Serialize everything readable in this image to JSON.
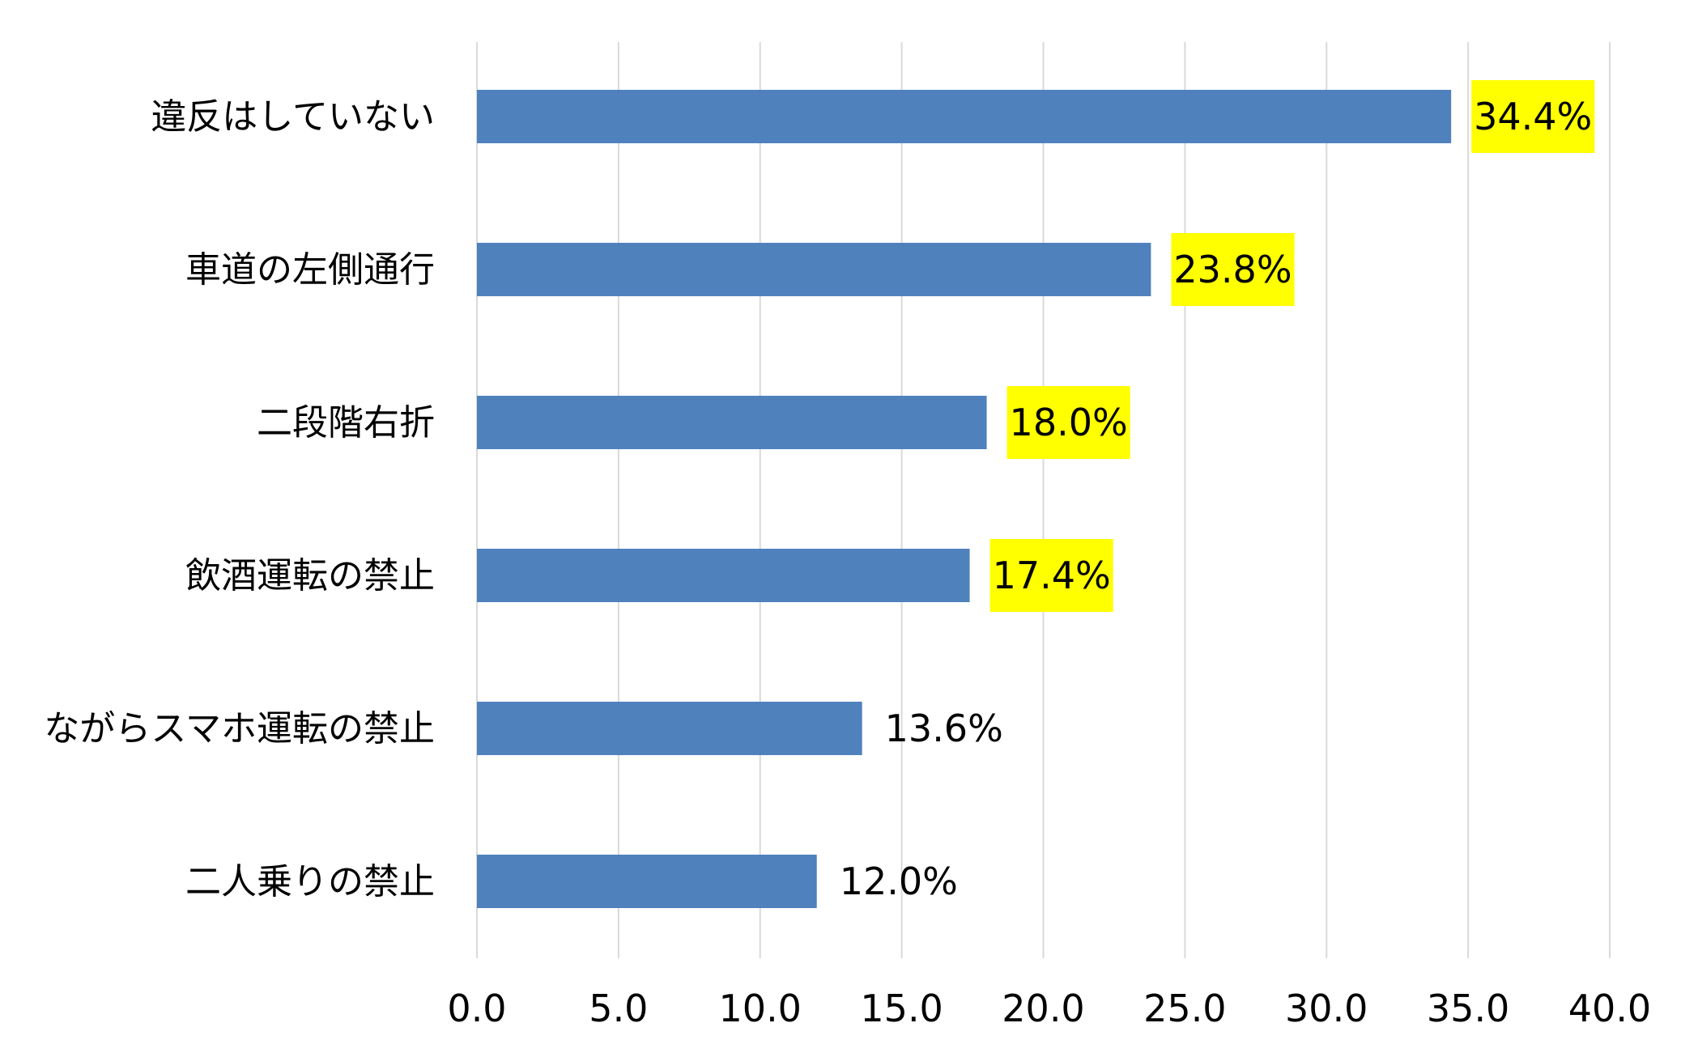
{
  "chart_data": {
    "type": "bar",
    "orientation": "horizontal",
    "categories": [
      "違反はしていない",
      "車道の左側通行",
      "二段階右折",
      "飲酒運転の禁止",
      "ながらスマホ運転の禁止",
      "二人乗りの禁止"
    ],
    "values": [
      34.4,
      23.8,
      18.0,
      17.4,
      13.6,
      12.0
    ],
    "value_labels": [
      "34.4%",
      "23.8%",
      "18.0%",
      "17.4%",
      "13.6%",
      "12.0%"
    ],
    "highlighted": [
      true,
      true,
      true,
      true,
      false,
      false
    ],
    "xlim": [
      0,
      40
    ],
    "x_ticks": [
      0,
      5,
      10,
      15,
      20,
      25,
      30,
      35,
      40
    ],
    "x_tick_labels": [
      "0.0",
      "5.0",
      "10.0",
      "15.0",
      "20.0",
      "25.0",
      "30.0",
      "35.0",
      "40.0"
    ],
    "grid": "vertical",
    "legend": "none",
    "title": "",
    "xlabel": "",
    "ylabel": ""
  },
  "colors": {
    "bar": "#4f81bd",
    "grid": "#d9d9d9",
    "highlight": "#ffff00",
    "text": "#000000"
  }
}
